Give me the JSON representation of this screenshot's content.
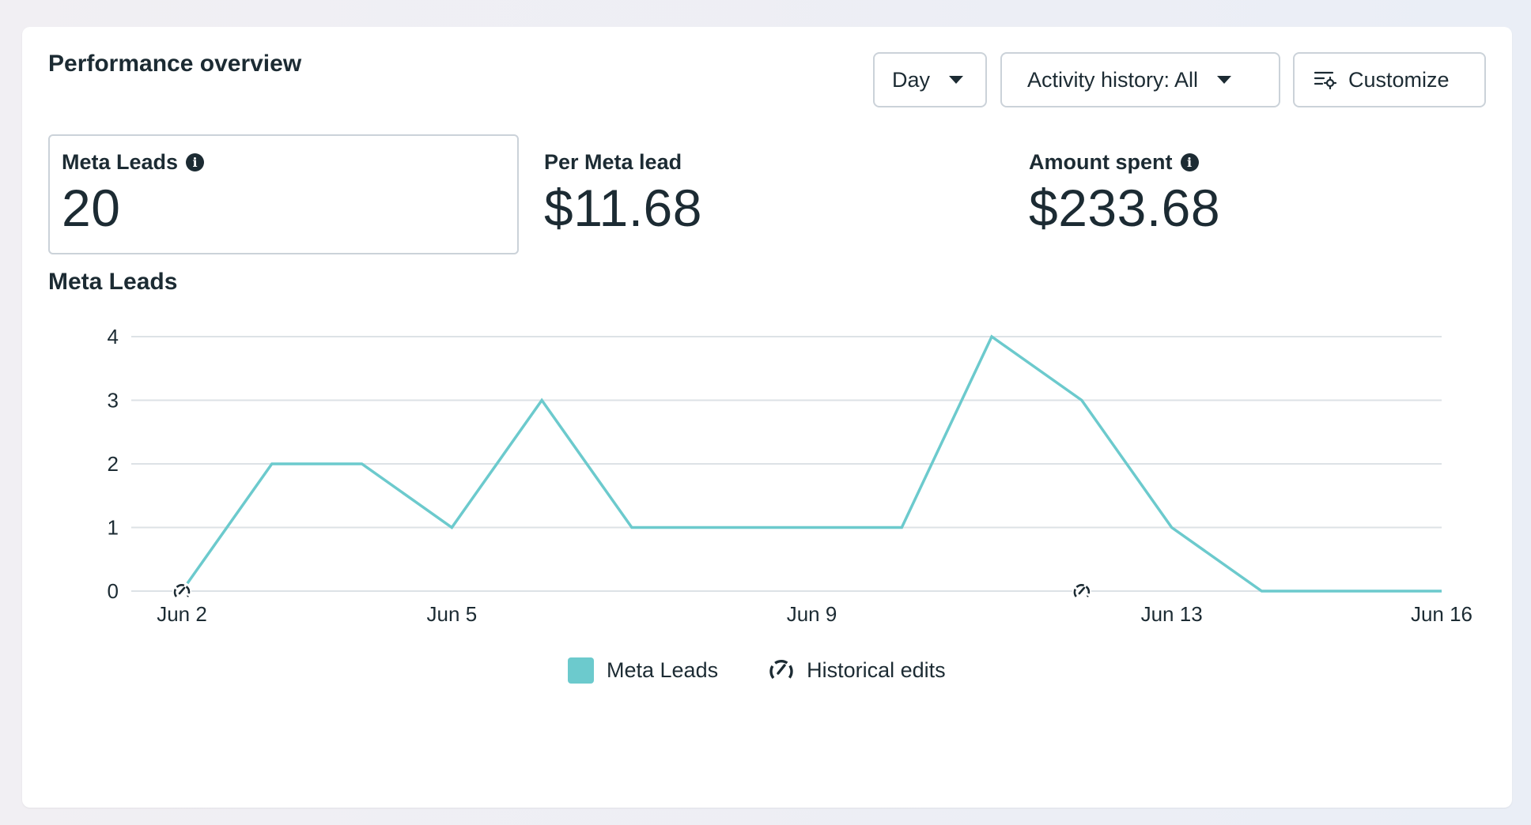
{
  "header": {
    "title": "Performance overview",
    "day_label": "Day",
    "activity_label": "Activity history: All",
    "customize_label": "Customize"
  },
  "metrics": [
    {
      "label": "Meta Leads",
      "value": "20",
      "info": true
    },
    {
      "label": "Per Meta lead",
      "value": "$11.68",
      "info": false
    },
    {
      "label": "Amount spent",
      "value": "$233.68",
      "info": true
    }
  ],
  "chart_title": "Meta Leads",
  "legend": {
    "series_label": "Meta Leads",
    "edits_label": "Historical edits"
  },
  "colors": {
    "line": "#6ccacd",
    "grid": "#dde2e6",
    "text": "#1c2b33"
  },
  "chart_data": {
    "type": "line",
    "title": "Meta Leads",
    "xlabel": "",
    "ylabel": "",
    "x": [
      "Jun 2",
      "Jun 3",
      "Jun 4",
      "Jun 5",
      "Jun 6",
      "Jun 7",
      "Jun 8",
      "Jun 9",
      "Jun 10",
      "Jun 11",
      "Jun 12",
      "Jun 13",
      "Jun 14",
      "Jun 15",
      "Jun 16"
    ],
    "series": [
      {
        "name": "Meta Leads",
        "values": [
          0,
          2,
          2,
          1,
          3,
          1,
          1,
          1,
          1,
          4,
          3,
          1,
          0,
          0,
          0
        ]
      }
    ],
    "x_tick_labels": [
      "Jun 2",
      "Jun 5",
      "Jun 9",
      "Jun 13",
      "Jun 16"
    ],
    "y_ticks": [
      0,
      1,
      2,
      3,
      4
    ],
    "ylim": [
      0,
      4
    ],
    "historical_edits": [
      "Jun 2",
      "Jun 12"
    ],
    "grid": true,
    "legend": "bottom-center"
  }
}
